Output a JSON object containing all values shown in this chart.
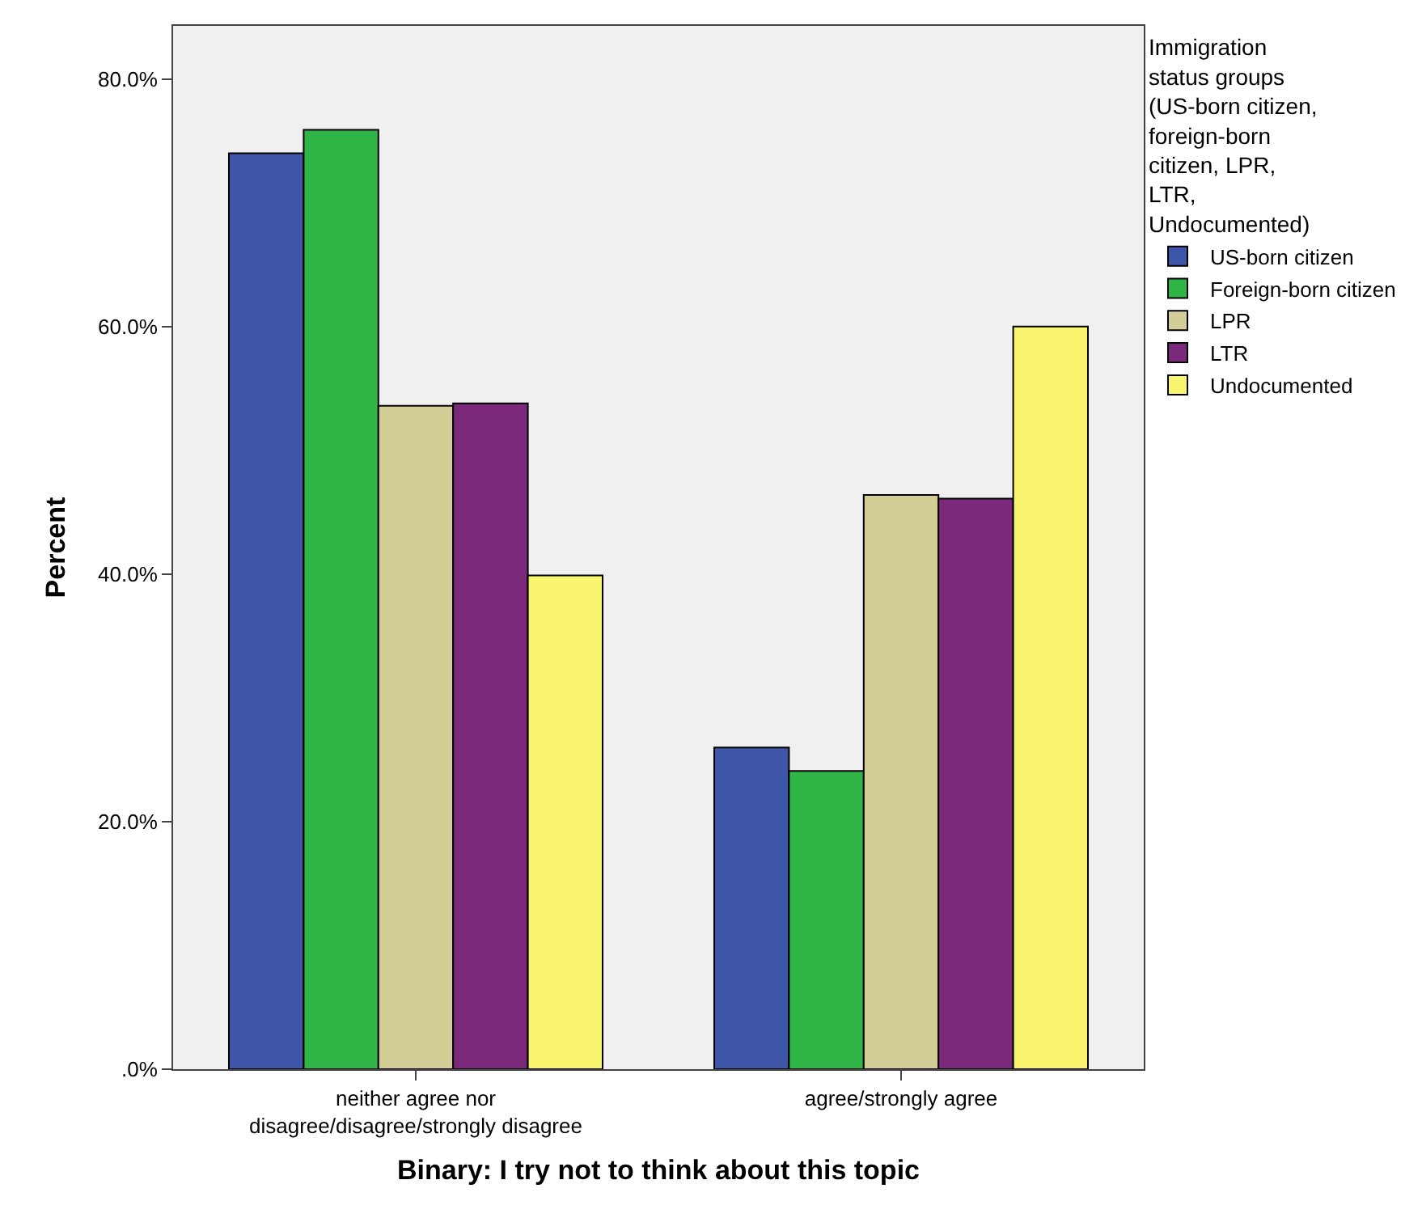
{
  "chart_data": {
    "type": "bar",
    "xlabel": "Binary: I try not to think about this topic",
    "ylabel": "Percent",
    "legend_title": "Immigration\nstatus groups\n(US-born citizen,\nforeign-born\ncitizen, LPR,\nLTR,\nUndocumented)",
    "legend": "top right",
    "categories": [
      "neither agree nor\ndisagree/disagree/strongly disagree",
      "agree/strongly agree"
    ],
    "series": [
      {
        "name": "US-born citizen",
        "color": "#3d56a8",
        "values": [
          74.0,
          26.0
        ]
      },
      {
        "name": "Foreign-born citizen",
        "color": "#2fb546",
        "values": [
          75.9,
          24.1
        ]
      },
      {
        "name": "LPR",
        "color": "#d3cd96",
        "values": [
          53.6,
          46.4
        ]
      },
      {
        "name": "LTR",
        "color": "#7b2a7b",
        "values": [
          53.8,
          46.1
        ]
      },
      {
        "name": "Undocumented",
        "color": "#f9f56f",
        "values": [
          39.9,
          60.0
        ]
      }
    ],
    "ylim": [
      0,
      84.3
    ],
    "yticks": [
      {
        "value": 0,
        "label": ".0%"
      },
      {
        "value": 20,
        "label": "20.0%"
      },
      {
        "value": 40,
        "label": "40.0%"
      },
      {
        "value": 60,
        "label": "60.0%"
      },
      {
        "value": 80,
        "label": "80.0%"
      }
    ],
    "grid": false
  }
}
